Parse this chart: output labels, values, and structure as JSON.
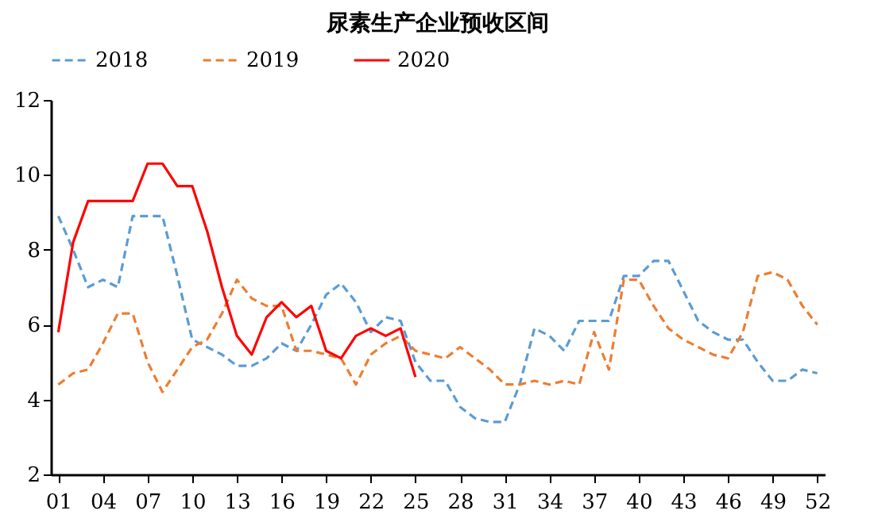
{
  "chart_data": {
    "type": "line",
    "title": "尿素生产企业预收区间",
    "categories": [
      "01",
      null,
      null,
      "04",
      null,
      null,
      "07",
      null,
      null,
      "10",
      null,
      null,
      "13",
      null,
      null,
      "16",
      null,
      null,
      "19",
      null,
      null,
      "22",
      null,
      null,
      "25",
      null,
      null,
      "28",
      null,
      null,
      "31",
      null,
      null,
      "34",
      null,
      null,
      "37",
      null,
      null,
      "40",
      null,
      null,
      "43",
      null,
      null,
      "46",
      null,
      null,
      "49",
      null,
      null,
      "52"
    ],
    "series": [
      {
        "name": "2018",
        "color": "#5b9bd5",
        "line_style": "dashed",
        "values": [
          8.9,
          8.0,
          7.0,
          7.2,
          7.0,
          8.9,
          8.9,
          8.9,
          7.3,
          5.6,
          5.4,
          5.2,
          4.9,
          4.9,
          5.1,
          5.5,
          5.3,
          6.0,
          6.8,
          7.1,
          6.6,
          5.8,
          6.2,
          6.1,
          5.0,
          4.5,
          4.5,
          3.8,
          3.5,
          3.4,
          3.4,
          4.4,
          5.9,
          5.7,
          5.3,
          6.1,
          6.1,
          6.1,
          7.3,
          7.3,
          7.7,
          7.7,
          6.9,
          6.1,
          5.8,
          5.6,
          5.6,
          5.0,
          4.5,
          4.5,
          4.8,
          4.7
        ]
      },
      {
        "name": "2019",
        "color": "#ed7d31",
        "line_style": "dashed",
        "values": [
          4.4,
          4.7,
          4.8,
          5.5,
          6.3,
          6.3,
          5.0,
          4.2,
          4.8,
          5.4,
          5.6,
          6.3,
          7.2,
          6.7,
          6.5,
          6.5,
          5.3,
          5.3,
          5.2,
          5.1,
          4.4,
          5.2,
          5.5,
          5.7,
          5.3,
          5.2,
          5.1,
          5.4,
          5.1,
          4.8,
          4.4,
          4.4,
          4.5,
          4.4,
          4.5,
          4.4,
          5.8,
          4.8,
          7.2,
          7.2,
          6.5,
          5.9,
          5.6,
          5.4,
          5.2,
          5.1,
          5.8,
          7.3,
          7.4,
          7.2,
          6.5,
          6.0
        ]
      },
      {
        "name": "2020",
        "color": "#ff0000",
        "line_style": "solid",
        "values": [
          5.8,
          8.2,
          9.3,
          9.3,
          9.3,
          9.3,
          10.3,
          10.3,
          9.7,
          9.7,
          8.5,
          7.0,
          5.7,
          5.2,
          6.2,
          6.6,
          6.2,
          6.5,
          5.3,
          5.1,
          5.7,
          5.9,
          5.7,
          5.9,
          4.6,
          null,
          null,
          null,
          null,
          null,
          null,
          null,
          null,
          null,
          null,
          null,
          null,
          null,
          null,
          null,
          null,
          null,
          null,
          null,
          null,
          null,
          null,
          null,
          null,
          null,
          null,
          null
        ]
      }
    ],
    "ylim": [
      2,
      12
    ],
    "yticks": [
      2,
      4,
      6,
      8,
      10,
      12
    ],
    "grid": false,
    "legend": "top"
  }
}
